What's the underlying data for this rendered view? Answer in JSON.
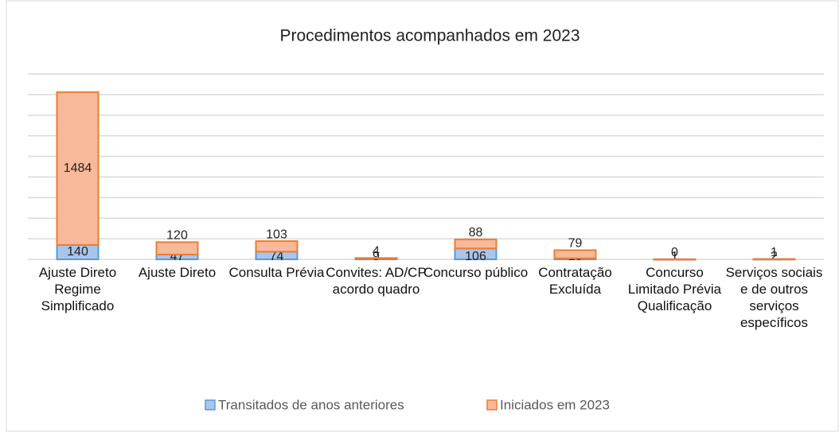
{
  "chart_data": {
    "type": "stacked-bar",
    "title": "Procedimentos acompanhados em 2023",
    "categories": [
      "Ajuste Direto Regime Simplificado",
      "Ajuste Direto",
      "Consulta Prévia",
      "Convites: AD/CP acordo quadro",
      "Concurso público",
      "Contratação Excluída",
      "Concurso Limitado Prévia Qualificação",
      "Serviços sociais e de outros serviços específicos"
    ],
    "series": [
      {
        "name": "Transitados de anos anteriores",
        "color": "#a9c5ec",
        "stroke": "#5b9bd5",
        "values": [
          140,
          47,
          74,
          9,
          106,
          10,
          1,
          2
        ]
      },
      {
        "name": "Iniciados em 2023",
        "color": "#f7b99a",
        "stroke": "#ed7d31",
        "values": [
          1484,
          120,
          103,
          4,
          88,
          79,
          0,
          1
        ]
      }
    ],
    "ylim": [
      0,
      1800
    ],
    "yticks": [
      0,
      200,
      400,
      600,
      800,
      1000,
      1200,
      1400,
      1600,
      1800
    ],
    "grid": true,
    "legend": "bottom"
  }
}
